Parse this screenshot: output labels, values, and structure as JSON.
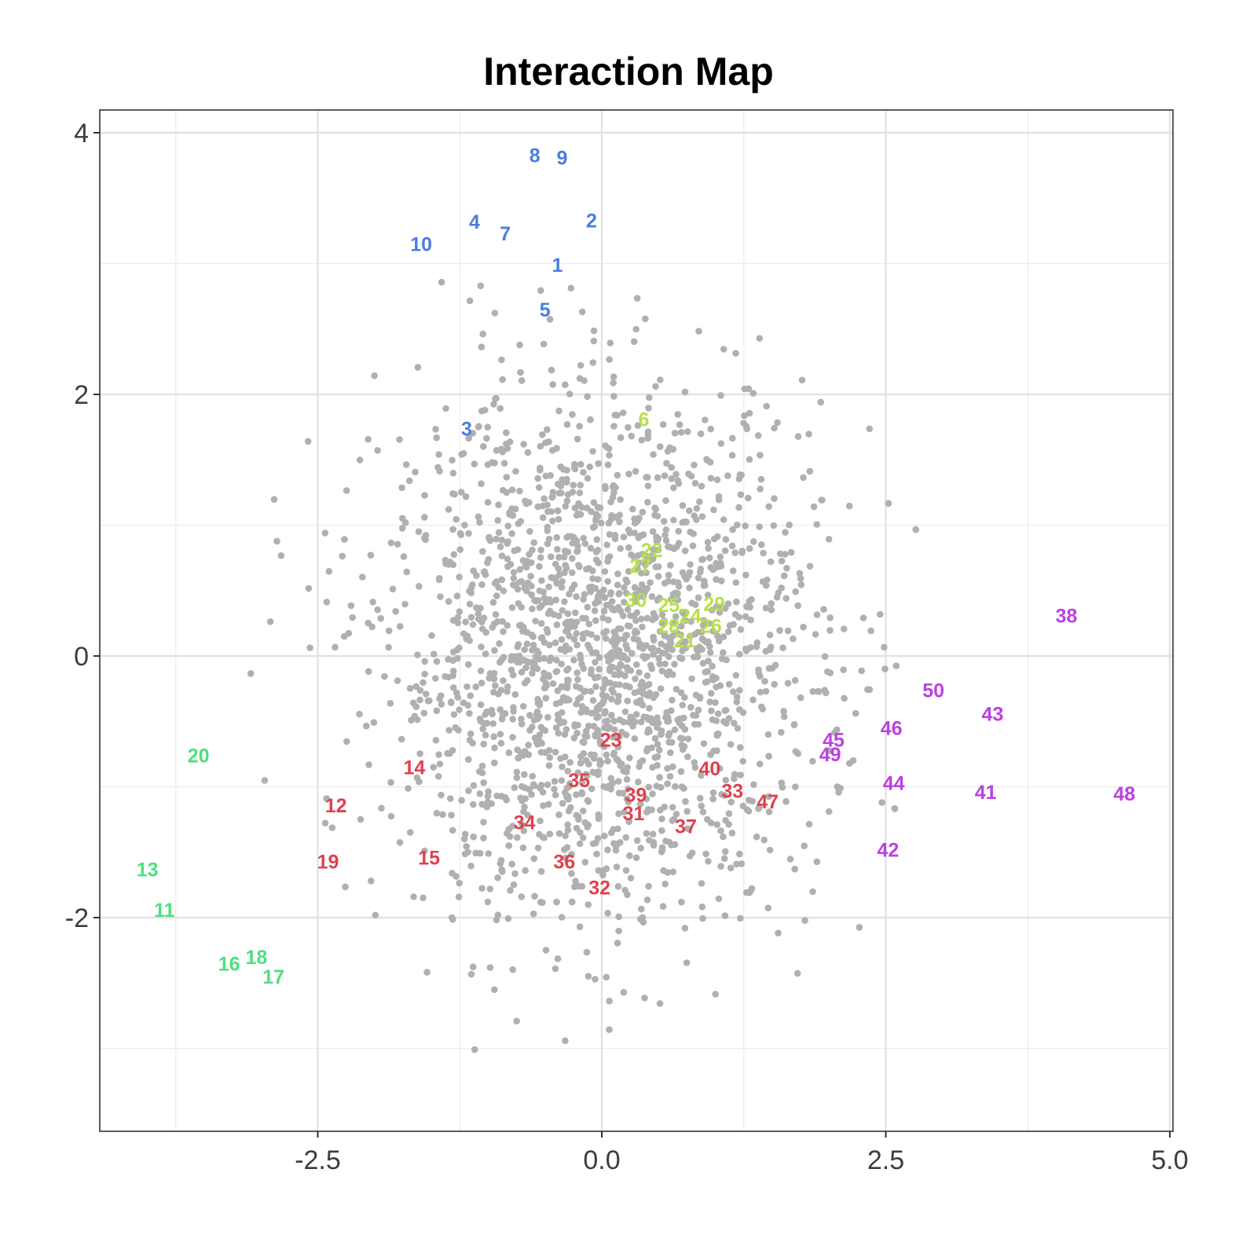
{
  "chart_data": {
    "type": "scatter",
    "title": "Interaction Map",
    "xlabel": "",
    "ylabel": "",
    "xlim": [
      -4.45,
      5.0
    ],
    "ylim": [
      -3.62,
      4.17
    ],
    "x_ticks": [
      -2.5,
      0.0,
      2.5,
      5.0
    ],
    "x_tick_labels": [
      "-2.5",
      "0.0",
      "2.5",
      "5.0"
    ],
    "y_ticks": [
      -2,
      0,
      2,
      4
    ],
    "y_tick_labels": [
      "-2",
      "0",
      "2",
      "4"
    ],
    "grid": true,
    "legend": "none",
    "background_points": {
      "description": "approx. 2000 grey unlabeled points, roughly bivariate normal",
      "color": "#b0b0b0",
      "count": 2000,
      "x_mean": 0.0,
      "x_sd": 0.95,
      "y_mean": 0.0,
      "y_sd": 1.0,
      "x_range": [
        -3.15,
        3.1
      ],
      "y_range": [
        -3.3,
        2.95
      ]
    },
    "groups": [
      {
        "name": "group-1",
        "color": "#4a7de0"
      },
      {
        "name": "group-2",
        "color": "#4de07f"
      },
      {
        "name": "group-3",
        "color": "#b6e04a"
      },
      {
        "name": "group-4",
        "color": "#e0404c"
      },
      {
        "name": "group-5",
        "color": "#bc40e0"
      }
    ],
    "labeled_points": [
      {
        "label": "1",
        "x": -0.39,
        "y": 2.99,
        "group": 0
      },
      {
        "label": "2",
        "x": -0.09,
        "y": 3.33,
        "group": 0
      },
      {
        "label": "3",
        "x": -1.19,
        "y": 1.74,
        "group": 0
      },
      {
        "label": "4",
        "x": -1.12,
        "y": 3.32,
        "group": 0
      },
      {
        "label": "5",
        "x": -0.5,
        "y": 2.65,
        "group": 0
      },
      {
        "label": "6",
        "x": 0.37,
        "y": 1.81,
        "group": 2
      },
      {
        "label": "7",
        "x": -0.85,
        "y": 3.23,
        "group": 0
      },
      {
        "label": "8",
        "x": -0.59,
        "y": 3.83,
        "group": 0
      },
      {
        "label": "9",
        "x": -0.35,
        "y": 3.81,
        "group": 0
      },
      {
        "label": "10",
        "x": -1.59,
        "y": 3.15,
        "group": 0
      },
      {
        "label": "11",
        "x": -3.85,
        "y": -1.94,
        "group": 1
      },
      {
        "label": "12",
        "x": -2.34,
        "y": -1.14,
        "group": 3
      },
      {
        "label": "13",
        "x": -4.0,
        "y": -1.63,
        "group": 1
      },
      {
        "label": "14",
        "x": -1.65,
        "y": -0.85,
        "group": 3
      },
      {
        "label": "15",
        "x": -1.52,
        "y": -1.54,
        "group": 3
      },
      {
        "label": "16",
        "x": -3.28,
        "y": -2.35,
        "group": 1
      },
      {
        "label": "17",
        "x": -2.89,
        "y": -2.45,
        "group": 1
      },
      {
        "label": "18",
        "x": -3.04,
        "y": -2.3,
        "group": 1
      },
      {
        "label": "19",
        "x": -2.41,
        "y": -1.57,
        "group": 3
      },
      {
        "label": "20",
        "x": -3.55,
        "y": -0.76,
        "group": 1
      },
      {
        "label": "21",
        "x": 0.73,
        "y": 0.12,
        "group": 2
      },
      {
        "label": "22",
        "x": 0.44,
        "y": 0.81,
        "group": 2
      },
      {
        "label": "23",
        "x": 0.08,
        "y": -0.64,
        "group": 3
      },
      {
        "label": "24",
        "x": 0.78,
        "y": 0.31,
        "group": 2
      },
      {
        "label": "25",
        "x": 0.59,
        "y": 0.39,
        "group": 2
      },
      {
        "label": "26",
        "x": 0.96,
        "y": 0.23,
        "group": 2
      },
      {
        "label": "27",
        "x": 0.34,
        "y": 0.69,
        "group": 2
      },
      {
        "label": "28",
        "x": 0.59,
        "y": 0.23,
        "group": 2
      },
      {
        "label": "29",
        "x": 0.99,
        "y": 0.4,
        "group": 2
      },
      {
        "label": "30",
        "x": 0.3,
        "y": 0.43,
        "group": 2
      },
      {
        "label": "31",
        "x": 0.28,
        "y": -1.2,
        "group": 3
      },
      {
        "label": "32",
        "x": -0.02,
        "y": -1.77,
        "group": 3
      },
      {
        "label": "33",
        "x": 1.15,
        "y": -1.03,
        "group": 3
      },
      {
        "label": "34",
        "x": -0.68,
        "y": -1.27,
        "group": 3
      },
      {
        "label": "35",
        "x": -0.2,
        "y": -0.95,
        "group": 3
      },
      {
        "label": "36",
        "x": -0.33,
        "y": -1.57,
        "group": 3
      },
      {
        "label": "37",
        "x": 0.74,
        "y": -1.3,
        "group": 3
      },
      {
        "label": "38",
        "x": 4.09,
        "y": 0.31,
        "group": 4
      },
      {
        "label": "39",
        "x": 0.3,
        "y": -1.06,
        "group": 3
      },
      {
        "label": "40",
        "x": 0.95,
        "y": -0.86,
        "group": 3
      },
      {
        "label": "41",
        "x": 3.38,
        "y": -1.04,
        "group": 4
      },
      {
        "label": "42",
        "x": 2.52,
        "y": -1.48,
        "group": 4
      },
      {
        "label": "43",
        "x": 3.44,
        "y": -0.44,
        "group": 4
      },
      {
        "label": "44",
        "x": 2.57,
        "y": -0.97,
        "group": 4
      },
      {
        "label": "45",
        "x": 2.04,
        "y": -0.64,
        "group": 4
      },
      {
        "label": "46",
        "x": 2.55,
        "y": -0.55,
        "group": 4
      },
      {
        "label": "47",
        "x": 1.46,
        "y": -1.11,
        "group": 3
      },
      {
        "label": "48",
        "x": 4.6,
        "y": -1.05,
        "group": 4
      },
      {
        "label": "49",
        "x": 2.01,
        "y": -0.75,
        "group": 4
      },
      {
        "label": "50",
        "x": 2.92,
        "y": -0.26,
        "group": 4
      }
    ]
  }
}
